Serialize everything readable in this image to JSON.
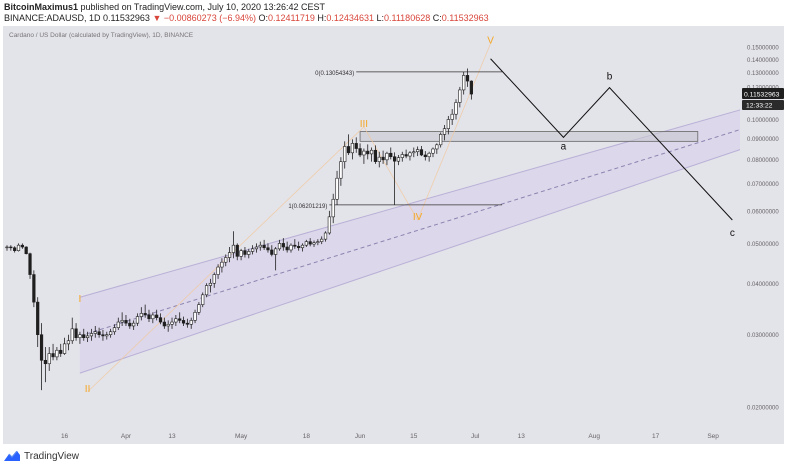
{
  "header": {
    "author": "BitcoinMaximus1",
    "published": "published on TradingView.com, July 10, 2020 13:26:42 CEST",
    "symbol": "BINANCE:ADAUSD, 1D",
    "last": "0.11532963",
    "change": "−0.00860273 (−6.94%)",
    "o_label": "O:",
    "o": "0.12411719",
    "h_label": "H:",
    "h": "0.12434631",
    "l_label": "L:",
    "l": "0.11180628",
    "c_label": "C:",
    "c": "0.11532963"
  },
  "footer": {
    "brand": "TradingView"
  },
  "colors": {
    "background": "#e3e3ea",
    "candle": "#1f1f1f",
    "wave_label": "#f5a623",
    "channel_fill": "#d9d3ea",
    "channel_line": "#b9b0d6",
    "price_tag": "#1f1f1f"
  },
  "chart_data": {
    "type": "candlestick",
    "title": "Cardano / US Dollar (calculated by TradingView), 1D, BINANCE",
    "y_scale": "log",
    "ylim": [
      0.018,
      0.165
    ],
    "y_ticks": [
      "0.15000000",
      "0.14000000",
      "0.13000000",
      "0.12000000",
      "0.11000000",
      "0.10000000",
      "0.09000000",
      "0.08000000",
      "0.07000000",
      "0.06000000",
      "0.05000000",
      "0.04000000",
      "0.03000000",
      "0.02000000"
    ],
    "x_start": "2020-03-01",
    "x_end": "2020-09-08",
    "x_ticks": [
      {
        "label": "16",
        "date": "2020-03-16"
      },
      {
        "label": "Apr",
        "date": "2020-04-01"
      },
      {
        "label": "13",
        "date": "2020-04-13"
      },
      {
        "label": "May",
        "date": "2020-05-01"
      },
      {
        "label": "18",
        "date": "2020-05-18"
      },
      {
        "label": "Jun",
        "date": "2020-06-01"
      },
      {
        "label": "15",
        "date": "2020-06-15"
      },
      {
        "label": "Jul",
        "date": "2020-07-01"
      },
      {
        "label": "13",
        "date": "2020-07-13"
      },
      {
        "label": "Aug",
        "date": "2020-08-01"
      },
      {
        "label": "17",
        "date": "2020-08-17"
      },
      {
        "label": "Sep",
        "date": "2020-09-01"
      }
    ],
    "candles_start": "2020-03-01",
    "candles": [
      [
        0.049,
        0.0495,
        0.048,
        0.049
      ],
      [
        0.049,
        0.0495,
        0.048,
        0.0488
      ],
      [
        0.0488,
        0.0492,
        0.0475,
        0.048
      ],
      [
        0.048,
        0.05,
        0.0478,
        0.0495
      ],
      [
        0.0495,
        0.05,
        0.0485,
        0.049
      ],
      [
        0.049,
        0.0492,
        0.047,
        0.0472
      ],
      [
        0.0472,
        0.0475,
        0.041,
        0.042
      ],
      [
        0.042,
        0.043,
        0.035,
        0.036
      ],
      [
        0.036,
        0.037,
        0.028,
        0.03
      ],
      [
        0.03,
        0.032,
        0.022,
        0.026
      ],
      [
        0.026,
        0.028,
        0.023,
        0.0255
      ],
      [
        0.0255,
        0.028,
        0.0245,
        0.027
      ],
      [
        0.027,
        0.0285,
        0.026,
        0.0265
      ],
      [
        0.0265,
        0.028,
        0.026,
        0.0275
      ],
      [
        0.0275,
        0.0285,
        0.0265,
        0.027
      ],
      [
        0.027,
        0.0295,
        0.0268,
        0.0285
      ],
      [
        0.0285,
        0.03,
        0.0275,
        0.029
      ],
      [
        0.029,
        0.033,
        0.0285,
        0.031
      ],
      [
        0.031,
        0.032,
        0.029,
        0.0295
      ],
      [
        0.0295,
        0.0305,
        0.0285,
        0.03
      ],
      [
        0.03,
        0.031,
        0.029,
        0.0295
      ],
      [
        0.0295,
        0.0305,
        0.0288,
        0.0298
      ],
      [
        0.0298,
        0.031,
        0.029,
        0.0302
      ],
      [
        0.0302,
        0.0315,
        0.0295,
        0.0305
      ],
      [
        0.0305,
        0.0312,
        0.0295,
        0.03
      ],
      [
        0.03,
        0.0308,
        0.029,
        0.0298
      ],
      [
        0.0298,
        0.0305,
        0.0292,
        0.03
      ],
      [
        0.03,
        0.031,
        0.0295,
        0.0305
      ],
      [
        0.0305,
        0.0318,
        0.03,
        0.0312
      ],
      [
        0.0312,
        0.033,
        0.0308,
        0.0322
      ],
      [
        0.0322,
        0.034,
        0.0315,
        0.0325
      ],
      [
        0.0325,
        0.0335,
        0.0315,
        0.032
      ],
      [
        0.032,
        0.0328,
        0.031,
        0.0315
      ],
      [
        0.0315,
        0.0325,
        0.0308,
        0.032
      ],
      [
        0.032,
        0.0338,
        0.0315,
        0.0332
      ],
      [
        0.0332,
        0.035,
        0.0325,
        0.0338
      ],
      [
        0.0338,
        0.0355,
        0.033,
        0.0335
      ],
      [
        0.0335,
        0.0345,
        0.0322,
        0.0328
      ],
      [
        0.0328,
        0.034,
        0.032,
        0.0335
      ],
      [
        0.0335,
        0.0345,
        0.0325,
        0.033
      ],
      [
        0.033,
        0.0338,
        0.0318,
        0.0322
      ],
      [
        0.0322,
        0.033,
        0.031,
        0.0315
      ],
      [
        0.0315,
        0.0325,
        0.0305,
        0.0318
      ],
      [
        0.0318,
        0.033,
        0.031,
        0.0322
      ],
      [
        0.0322,
        0.0335,
        0.0315,
        0.0328
      ],
      [
        0.0328,
        0.034,
        0.032,
        0.0325
      ],
      [
        0.0325,
        0.0332,
        0.0315,
        0.032
      ],
      [
        0.032,
        0.0328,
        0.0312,
        0.0318
      ],
      [
        0.0318,
        0.033,
        0.031,
        0.0325
      ],
      [
        0.0325,
        0.0345,
        0.032,
        0.034
      ],
      [
        0.034,
        0.036,
        0.0335,
        0.0355
      ],
      [
        0.0355,
        0.038,
        0.035,
        0.0375
      ],
      [
        0.0375,
        0.04,
        0.037,
        0.0395
      ],
      [
        0.0395,
        0.041,
        0.038,
        0.04
      ],
      [
        0.04,
        0.0425,
        0.039,
        0.042
      ],
      [
        0.042,
        0.0445,
        0.041,
        0.0438
      ],
      [
        0.0438,
        0.046,
        0.0425,
        0.045
      ],
      [
        0.045,
        0.047,
        0.044,
        0.0462
      ],
      [
        0.0462,
        0.049,
        0.045,
        0.0475
      ],
      [
        0.0475,
        0.0535,
        0.046,
        0.0495
      ],
      [
        0.0495,
        0.05,
        0.0455,
        0.0465
      ],
      [
        0.0465,
        0.0485,
        0.0455,
        0.048
      ],
      [
        0.048,
        0.049,
        0.0462,
        0.047
      ],
      [
        0.047,
        0.0485,
        0.046,
        0.0478
      ],
      [
        0.0478,
        0.0495,
        0.047,
        0.0485
      ],
      [
        0.0485,
        0.05,
        0.0475,
        0.049
      ],
      [
        0.049,
        0.0505,
        0.048,
        0.0495
      ],
      [
        0.0495,
        0.051,
        0.0482,
        0.0488
      ],
      [
        0.0488,
        0.05,
        0.0475,
        0.0482
      ],
      [
        0.0482,
        0.0495,
        0.0465,
        0.047
      ],
      [
        0.047,
        0.049,
        0.043,
        0.0485
      ],
      [
        0.0485,
        0.051,
        0.048,
        0.05
      ],
      [
        0.05,
        0.0515,
        0.048,
        0.049
      ],
      [
        0.049,
        0.0505,
        0.0475,
        0.0482
      ],
      [
        0.0482,
        0.05,
        0.0475,
        0.0495
      ],
      [
        0.0495,
        0.0512,
        0.0485,
        0.0492
      ],
      [
        0.0492,
        0.0505,
        0.048,
        0.0488
      ],
      [
        0.0488,
        0.05,
        0.0478,
        0.0495
      ],
      [
        0.0495,
        0.051,
        0.049,
        0.0505
      ],
      [
        0.0505,
        0.0515,
        0.0492,
        0.0498
      ],
      [
        0.0498,
        0.0508,
        0.049,
        0.0502
      ],
      [
        0.0502,
        0.0512,
        0.0495,
        0.0505
      ],
      [
        0.0505,
        0.052,
        0.0498,
        0.0512
      ],
      [
        0.0512,
        0.0535,
        0.0505,
        0.053
      ],
      [
        0.053,
        0.06,
        0.0525,
        0.058
      ],
      [
        0.058,
        0.066,
        0.056,
        0.064
      ],
      [
        0.064,
        0.075,
        0.062,
        0.072
      ],
      [
        0.072,
        0.081,
        0.069,
        0.079
      ],
      [
        0.079,
        0.0885,
        0.076,
        0.086
      ],
      [
        0.086,
        0.092,
        0.082,
        0.083
      ],
      [
        0.083,
        0.0895,
        0.08,
        0.0875
      ],
      [
        0.0875,
        0.0905,
        0.083,
        0.085
      ],
      [
        0.085,
        0.0875,
        0.081,
        0.082
      ],
      [
        0.082,
        0.085,
        0.078,
        0.0838
      ],
      [
        0.0838,
        0.087,
        0.08,
        0.0825
      ],
      [
        0.0825,
        0.0855,
        0.079,
        0.0842
      ],
      [
        0.0842,
        0.0865,
        0.078,
        0.079
      ],
      [
        0.079,
        0.0835,
        0.0765,
        0.081
      ],
      [
        0.081,
        0.084,
        0.078,
        0.0798
      ],
      [
        0.0798,
        0.0835,
        0.0775,
        0.0828
      ],
      [
        0.0828,
        0.0855,
        0.08,
        0.0812
      ],
      [
        0.0812,
        0.0832,
        0.062,
        0.0792
      ],
      [
        0.0792,
        0.082,
        0.0775,
        0.0808
      ],
      [
        0.0808,
        0.0835,
        0.079,
        0.0822
      ],
      [
        0.0822,
        0.0845,
        0.0805,
        0.0815
      ],
      [
        0.0815,
        0.0838,
        0.0795,
        0.083
      ],
      [
        0.083,
        0.0855,
        0.081,
        0.0835
      ],
      [
        0.0835,
        0.086,
        0.0815,
        0.0845
      ],
      [
        0.0845,
        0.0862,
        0.0815,
        0.082
      ],
      [
        0.082,
        0.0838,
        0.0795,
        0.0812
      ],
      [
        0.0812,
        0.0835,
        0.079,
        0.0828
      ],
      [
        0.0828,
        0.0855,
        0.081,
        0.0848
      ],
      [
        0.0848,
        0.0875,
        0.0825,
        0.0868
      ],
      [
        0.0868,
        0.093,
        0.0855,
        0.092
      ],
      [
        0.092,
        0.097,
        0.089,
        0.095
      ],
      [
        0.095,
        0.102,
        0.092,
        0.1
      ],
      [
        0.1,
        0.106,
        0.097,
        0.103
      ],
      [
        0.103,
        0.112,
        0.1,
        0.11
      ],
      [
        0.11,
        0.12,
        0.107,
        0.118
      ],
      [
        0.118,
        0.1305,
        0.115,
        0.128
      ],
      [
        0.128,
        0.133,
        0.12,
        0.124
      ],
      [
        0.124,
        0.1245,
        0.1118,
        0.1153
      ]
    ],
    "annotations": {
      "waves": [
        {
          "label": "I",
          "date": "2020-03-20",
          "price": 0.036
        },
        {
          "label": "II",
          "date": "2020-03-22",
          "price": 0.0218
        },
        {
          "label": "III",
          "date": "2020-06-02",
          "price": 0.096
        },
        {
          "label": "IV",
          "date": "2020-06-16",
          "price": 0.057
        },
        {
          "label": "V",
          "date": "2020-07-05",
          "price": 0.153
        }
      ],
      "projection": [
        {
          "label": "",
          "date": "2020-07-05",
          "price": 0.1405
        },
        {
          "label": "a",
          "date": "2020-07-24",
          "price": 0.0905
        },
        {
          "label": "b",
          "date": "2020-08-05",
          "price": 0.1195
        },
        {
          "label": "c",
          "date": "2020-09-06",
          "price": 0.057
        }
      ],
      "fib_levels": [
        {
          "label": "0(0.13054343)",
          "price": 0.13054343,
          "from": "2020-05-31",
          "to": "2020-07-08"
        },
        {
          "label": "1(0.06201219)",
          "price": 0.06201219,
          "from": "2020-05-24",
          "to": "2020-07-08"
        }
      ],
      "resistance_box": {
        "from": "2020-06-01",
        "to": "2020-08-28",
        "top": 0.0935,
        "bottom": 0.0885
      },
      "channel": {
        "start": "2020-03-20",
        "end": "2020-09-08",
        "lower_start": 0.0242,
        "lower_end": 0.0845,
        "upper_start": 0.037,
        "upper_end": 0.1055,
        "mid_start": 0.0298,
        "mid_end": 0.0945
      },
      "price_tag": "0.11532963",
      "countdown": "12:33:22"
    }
  }
}
